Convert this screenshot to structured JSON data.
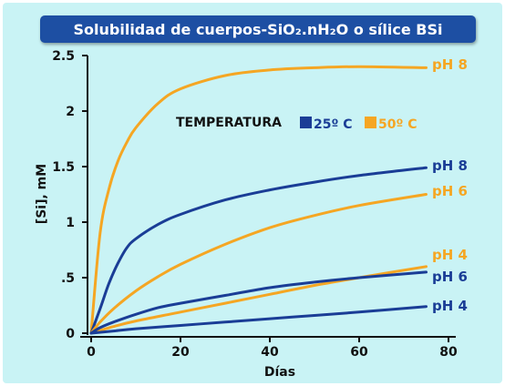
{
  "title": "Solubilidad de cuerpos-SiO₂.nH₂O o sílice BSi",
  "colors": {
    "background": "#c9f3f5",
    "title_bg": "#1d4fa3",
    "blue": "#1a3d96",
    "orange": "#f5a623"
  },
  "chart_data": {
    "type": "line",
    "title": "Solubilidad de cuerpos-SiO₂.nH₂O o sílice BSi",
    "xlabel": "Días",
    "ylabel": "[Si], mM",
    "xlim": [
      0,
      80
    ],
    "ylim": [
      0,
      2.5
    ],
    "x_ticks": [
      0,
      20,
      40,
      60,
      80
    ],
    "x_tick_labels": [
      "0",
      "20",
      "40",
      "60",
      "80"
    ],
    "y_ticks": [
      0,
      0.5,
      1,
      1.5,
      2,
      2.5
    ],
    "y_tick_labels": [
      "0",
      ".5",
      "1",
      "1.5",
      "2",
      "2.5"
    ],
    "grid": false,
    "legend": {
      "title": "TEMPERATURA",
      "items": [
        {
          "label": "25º C",
          "color": "#1a3d96"
        },
        {
          "label": "50º C",
          "color": "#f5a623"
        }
      ]
    },
    "series": [
      {
        "name": "pH 8",
        "temperature": "50º C",
        "color": "#f5a623",
        "x": [
          0,
          2,
          4,
          6,
          8,
          10,
          15,
          20,
          30,
          40,
          50,
          60,
          75
        ],
        "y": [
          0,
          0.9,
          1.3,
          1.55,
          1.72,
          1.85,
          2.07,
          2.2,
          2.32,
          2.37,
          2.39,
          2.4,
          2.39
        ]
      },
      {
        "name": "pH 8",
        "temperature": "25º C",
        "color": "#1a3d96",
        "x": [
          0,
          2,
          4,
          6,
          8,
          10,
          15,
          20,
          30,
          40,
          50,
          60,
          75
        ],
        "y": [
          0,
          0.22,
          0.45,
          0.63,
          0.77,
          0.85,
          0.98,
          1.07,
          1.2,
          1.29,
          1.36,
          1.42,
          1.49
        ]
      },
      {
        "name": "pH 6",
        "temperature": "50º C",
        "color": "#f5a623",
        "x": [
          0,
          2,
          5,
          10,
          15,
          20,
          30,
          40,
          50,
          60,
          75
        ],
        "y": [
          0,
          0.1,
          0.22,
          0.38,
          0.51,
          0.62,
          0.8,
          0.95,
          1.06,
          1.15,
          1.25
        ]
      },
      {
        "name": "pH 4",
        "temperature": "50º C",
        "color": "#f5a623",
        "x": [
          0,
          5,
          10,
          20,
          30,
          40,
          50,
          60,
          75
        ],
        "y": [
          0,
          0.06,
          0.11,
          0.19,
          0.27,
          0.35,
          0.43,
          0.5,
          0.6
        ]
      },
      {
        "name": "pH 6",
        "temperature": "25º C",
        "color": "#1a3d96",
        "x": [
          0,
          2,
          5,
          10,
          15,
          20,
          30,
          40,
          50,
          60,
          75
        ],
        "y": [
          0,
          0.05,
          0.1,
          0.17,
          0.23,
          0.27,
          0.34,
          0.41,
          0.46,
          0.5,
          0.55
        ]
      },
      {
        "name": "pH 4",
        "temperature": "25º C",
        "color": "#1a3d96",
        "x": [
          0,
          5,
          10,
          20,
          30,
          40,
          50,
          60,
          75
        ],
        "y": [
          0,
          0.02,
          0.04,
          0.07,
          0.1,
          0.13,
          0.16,
          0.19,
          0.24
        ]
      }
    ]
  }
}
